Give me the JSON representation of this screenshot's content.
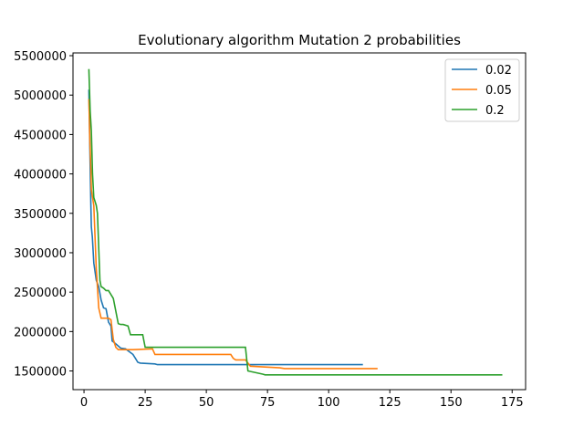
{
  "chart_data": {
    "type": "line",
    "title": "Evolutionary algorithm Mutation 2 probabilities",
    "xlabel": "",
    "ylabel": "",
    "xlim": [
      -4.5,
      180.5
    ],
    "ylim": [
      1263000,
      5535000
    ],
    "xticks": [
      0,
      25,
      50,
      75,
      100,
      125,
      150,
      175
    ],
    "yticks": [
      1500000,
      2000000,
      2500000,
      3000000,
      3500000,
      4000000,
      4500000,
      5000000,
      5500000
    ],
    "grid": false,
    "legend_placement": "top-right",
    "series": [
      {
        "name": "0.02",
        "color": "#1f77b4",
        "x": [
          2,
          2.4,
          2.8,
          3,
          3.4,
          4,
          5,
          6,
          7,
          8,
          9,
          10,
          11,
          11.5,
          12,
          15,
          17,
          20,
          21,
          22,
          23,
          29,
          30,
          67,
          114
        ],
        "y": [
          5070000,
          4300000,
          3600000,
          3330000,
          3200000,
          2870000,
          2650000,
          2570000,
          2400000,
          2300000,
          2290000,
          2120000,
          2070000,
          1880000,
          1870000,
          1790000,
          1780000,
          1710000,
          1660000,
          1610000,
          1600000,
          1590000,
          1580000,
          1580000,
          1580000
        ]
      },
      {
        "name": "0.05",
        "color": "#ff7f0e",
        "x": [
          2,
          2.4,
          2.8,
          3,
          4,
          5,
          6,
          7,
          8,
          10,
          11,
          12,
          13,
          14,
          20,
          28,
          29,
          33,
          60,
          61,
          62,
          66,
          68,
          80,
          82,
          95,
          120
        ],
        "y": [
          4950000,
          4400000,
          4060000,
          3800000,
          3600000,
          2800000,
          2300000,
          2170000,
          2170000,
          2170000,
          2150000,
          1900000,
          1800000,
          1770000,
          1770000,
          1780000,
          1710000,
          1710000,
          1710000,
          1660000,
          1640000,
          1640000,
          1560000,
          1540000,
          1530000,
          1530000,
          1530000
        ]
      },
      {
        "name": "0.2",
        "color": "#2ca02c",
        "x": [
          2,
          2.5,
          3,
          3.5,
          4,
          5,
          5.5,
          6,
          6.5,
          7,
          8,
          9,
          10,
          12,
          13,
          14,
          15,
          16,
          18,
          19,
          24,
          25,
          66,
          67,
          73,
          74,
          100,
          171
        ],
        "y": [
          5330000,
          4800000,
          4550000,
          4000000,
          3700000,
          3600000,
          3500000,
          3060000,
          2650000,
          2570000,
          2550000,
          2520000,
          2520000,
          2420000,
          2260000,
          2100000,
          2090000,
          2090000,
          2070000,
          1960000,
          1960000,
          1800000,
          1800000,
          1500000,
          1460000,
          1450000,
          1450000,
          1450000
        ]
      }
    ]
  }
}
